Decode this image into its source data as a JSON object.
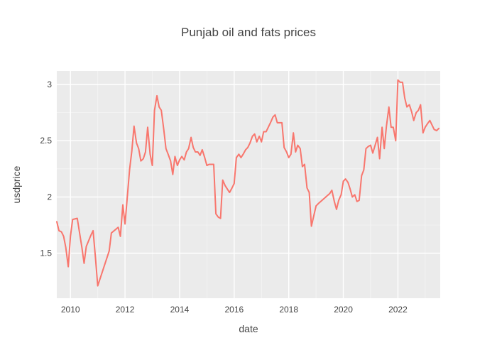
{
  "chart_data": {
    "type": "line",
    "title": "Punjab oil and fats prices",
    "xlabel": "date",
    "ylabel": "usdprice",
    "xlim": [
      2009.5,
      2023.55
    ],
    "ylim": [
      1.1,
      3.12
    ],
    "x_ticks": [
      2010,
      2012,
      2014,
      2016,
      2018,
      2020,
      2022
    ],
    "y_ticks": [
      1.5,
      2,
      2.5,
      3
    ],
    "y_tick_labels": [
      "1.5",
      "2",
      "2.5",
      "3"
    ],
    "grid": true,
    "background_color": "#ebebeb",
    "series": [
      {
        "color": "#f8766d",
        "x": [
          2009.5,
          2009.58,
          2009.67,
          2009.75,
          2009.83,
          2009.92,
          2010.0,
          2010.08,
          2010.25,
          2010.42,
          2010.5,
          2010.58,
          2010.75,
          2010.83,
          2010.92,
          2011.0,
          2011.42,
          2011.5,
          2011.75,
          2011.83,
          2011.92,
          2012.0,
          2012.08,
          2012.17,
          2012.25,
          2012.33,
          2012.42,
          2012.5,
          2012.58,
          2012.67,
          2012.75,
          2012.83,
          2012.92,
          2013.0,
          2013.08,
          2013.17,
          2013.25,
          2013.33,
          2013.42,
          2013.5,
          2013.58,
          2013.67,
          2013.75,
          2013.83,
          2013.92,
          2014.0,
          2014.08,
          2014.17,
          2014.25,
          2014.33,
          2014.42,
          2014.5,
          2014.58,
          2014.67,
          2014.75,
          2014.83,
          2014.92,
          2015.0,
          2015.08,
          2015.25,
          2015.33,
          2015.42,
          2015.5,
          2015.58,
          2015.67,
          2015.83,
          2015.92,
          2016.0,
          2016.08,
          2016.17,
          2016.25,
          2016.33,
          2016.42,
          2016.5,
          2016.58,
          2016.67,
          2016.75,
          2016.83,
          2016.92,
          2017.0,
          2017.08,
          2017.17,
          2017.25,
          2017.33,
          2017.42,
          2017.5,
          2017.58,
          2017.67,
          2017.75,
          2017.83,
          2017.92,
          2018.0,
          2018.08,
          2018.17,
          2018.25,
          2018.33,
          2018.42,
          2018.5,
          2018.58,
          2018.67,
          2018.75,
          2018.83,
          2019.0,
          2019.08,
          2019.5,
          2019.58,
          2019.67,
          2019.75,
          2019.83,
          2019.92,
          2020.0,
          2020.08,
          2020.17,
          2020.25,
          2020.33,
          2020.42,
          2020.5,
          2020.58,
          2020.67,
          2020.75,
          2020.83,
          2020.92,
          2021.0,
          2021.08,
          2021.25,
          2021.33,
          2021.42,
          2021.5,
          2021.58,
          2021.67,
          2021.75,
          2021.83,
          2021.92,
          2022.0,
          2022.08,
          2022.17,
          2022.25,
          2022.33,
          2022.42,
          2022.5,
          2022.58,
          2022.67,
          2022.75,
          2022.83,
          2022.92,
          2023.0,
          2023.08,
          2023.17,
          2023.33,
          2023.42,
          2023.5
        ],
        "y": [
          1.78,
          1.7,
          1.69,
          1.65,
          1.55,
          1.38,
          1.65,
          1.8,
          1.81,
          1.55,
          1.41,
          1.56,
          1.66,
          1.7,
          1.45,
          1.21,
          1.52,
          1.68,
          1.73,
          1.65,
          1.93,
          1.76,
          1.99,
          2.25,
          2.41,
          2.63,
          2.48,
          2.43,
          2.32,
          2.34,
          2.4,
          2.62,
          2.38,
          2.28,
          2.77,
          2.9,
          2.8,
          2.77,
          2.6,
          2.43,
          2.38,
          2.32,
          2.2,
          2.36,
          2.28,
          2.33,
          2.36,
          2.33,
          2.4,
          2.43,
          2.53,
          2.44,
          2.4,
          2.4,
          2.37,
          2.42,
          2.35,
          2.28,
          2.29,
          2.29,
          1.85,
          1.82,
          1.81,
          2.15,
          2.1,
          2.04,
          2.08,
          2.12,
          2.35,
          2.38,
          2.35,
          2.38,
          2.42,
          2.44,
          2.48,
          2.54,
          2.56,
          2.49,
          2.54,
          2.49,
          2.58,
          2.58,
          2.62,
          2.66,
          2.71,
          2.73,
          2.66,
          2.66,
          2.66,
          2.44,
          2.4,
          2.35,
          2.38,
          2.57,
          2.4,
          2.46,
          2.43,
          2.27,
          2.29,
          2.08,
          2.04,
          1.74,
          1.92,
          1.94,
          2.03,
          2.06,
          1.96,
          1.89,
          1.97,
          2.02,
          2.14,
          2.16,
          2.13,
          2.07,
          2.0,
          2.02,
          1.96,
          1.97,
          2.19,
          2.24,
          2.43,
          2.45,
          2.46,
          2.39,
          2.53,
          2.34,
          2.62,
          2.43,
          2.63,
          2.8,
          2.62,
          2.62,
          2.5,
          3.04,
          3.02,
          3.02,
          2.88,
          2.8,
          2.82,
          2.76,
          2.68,
          2.75,
          2.77,
          2.82,
          2.57,
          2.62,
          2.65,
          2.68,
          2.6,
          2.59,
          2.61
        ]
      }
    ]
  }
}
